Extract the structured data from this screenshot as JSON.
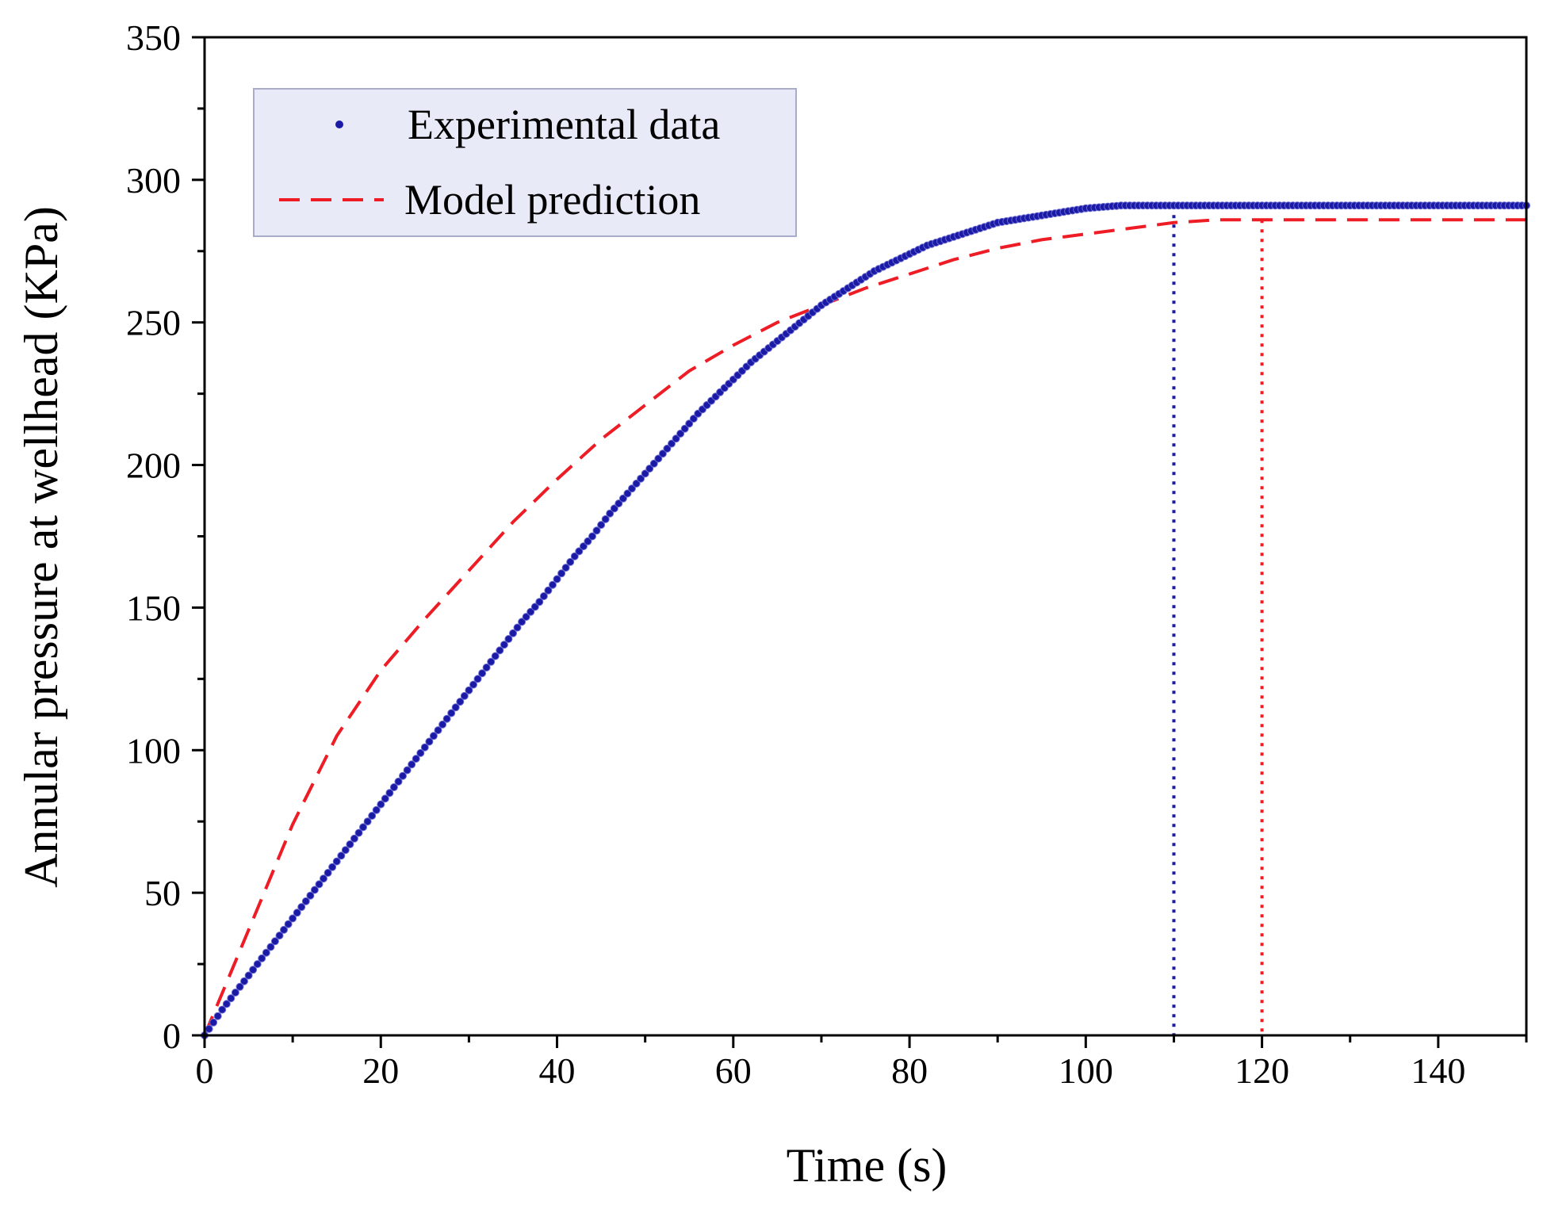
{
  "chart_data": {
    "type": "line",
    "title": "",
    "xlabel": "Time (s)",
    "ylabel": "Annular pressure at wellhead (KPa)",
    "xlim": [
      0,
      150
    ],
    "ylim": [
      0,
      350
    ],
    "xticks": [
      0,
      20,
      40,
      60,
      80,
      100,
      120,
      140
    ],
    "yticks": [
      0,
      50,
      100,
      150,
      200,
      250,
      300,
      350
    ],
    "xtick_labels": [
      "0",
      "20",
      "40",
      "60",
      "80",
      "100",
      "120",
      "140"
    ],
    "ytick_labels": [
      "0",
      "50",
      "100",
      "150",
      "200",
      "250",
      "300",
      "350"
    ],
    "x_minor_step": 10,
    "y_minor_step": 25,
    "grid": false,
    "legend_position": "top-left",
    "series": [
      {
        "name": "Experimental data",
        "style": "markers",
        "color": "#1a1aa6",
        "x": [
          0,
          2,
          4,
          6,
          8,
          10,
          12,
          14,
          16,
          18,
          20,
          22,
          24,
          26,
          28,
          30,
          32,
          34,
          36,
          38,
          40,
          42,
          44,
          46,
          48,
          50,
          52,
          54,
          56,
          58,
          60,
          62,
          64,
          66,
          68,
          70,
          72,
          74,
          76,
          78,
          80,
          82,
          84,
          86,
          88,
          90,
          92,
          94,
          96,
          98,
          100,
          102,
          104,
          106,
          108,
          110,
          112,
          114,
          116,
          118,
          120,
          122,
          124,
          126,
          128,
          130,
          132,
          134,
          136,
          138,
          140,
          142,
          144,
          146,
          148,
          150
        ],
        "values": [
          0,
          9,
          17,
          25,
          33,
          41,
          49,
          57,
          65,
          73,
          81,
          89,
          97,
          105,
          113,
          121,
          129,
          137,
          145,
          152,
          160,
          168,
          175,
          183,
          190,
          197,
          204,
          211,
          218,
          224,
          230,
          236,
          241,
          246,
          251,
          256,
          260,
          264,
          268,
          271,
          274,
          277,
          279,
          281,
          283,
          285,
          286,
          287,
          288,
          289,
          290,
          290.5,
          291,
          291,
          291,
          291,
          291,
          291,
          291,
          291,
          291,
          291,
          291,
          291,
          291,
          291,
          291,
          291,
          291,
          291,
          291,
          291,
          291,
          291,
          291,
          291
        ]
      },
      {
        "name": "Model prediction",
        "style": "dashed",
        "color": "#ee1c25",
        "x": [
          0,
          5,
          10,
          15,
          20,
          25,
          30,
          35,
          40,
          45,
          50,
          55,
          60,
          65,
          70,
          75,
          80,
          85,
          90,
          95,
          100,
          105,
          110,
          115,
          120,
          130,
          140,
          150
        ],
        "values": [
          0,
          37,
          74,
          105,
          128,
          146,
          163,
          180,
          195,
          209,
          221,
          233,
          242,
          250,
          256,
          262,
          267,
          272,
          276,
          279,
          281,
          283,
          285,
          286,
          286,
          286,
          286,
          286
        ]
      }
    ],
    "reference_lines": [
      {
        "x": 110,
        "y_top": 291,
        "color": "#1a1aa6",
        "style": "dotted"
      },
      {
        "x": 120,
        "y_top": 286,
        "color": "#ee1c25",
        "style": "dotted"
      }
    ],
    "legend_bg": "#e8eaf8"
  }
}
